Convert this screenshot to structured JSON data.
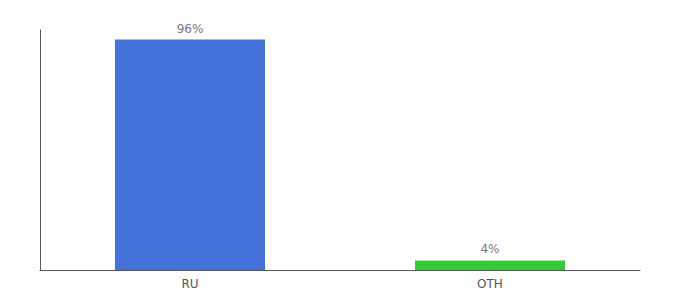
{
  "chart_data": {
    "type": "bar",
    "categories": [
      "RU",
      "OTH"
    ],
    "values": [
      96,
      4
    ],
    "value_labels": [
      "96%",
      "4%"
    ],
    "colors": [
      "#4472db",
      "#33cc33"
    ],
    "ylim": [
      0,
      100
    ],
    "grid": false,
    "data_labels": true,
    "tick_labels": "x"
  }
}
